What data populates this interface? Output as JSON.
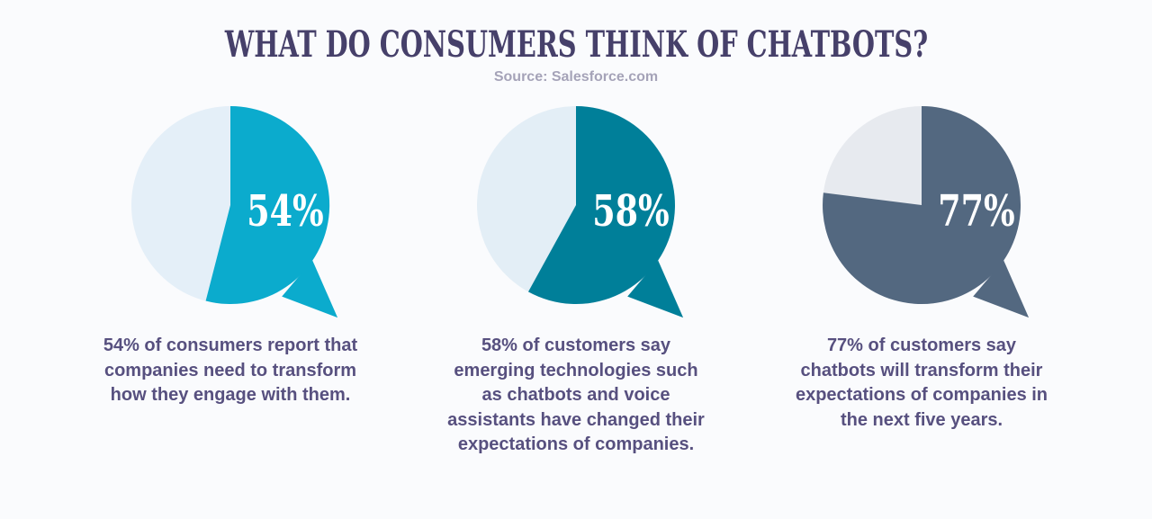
{
  "header": {
    "title": "WHAT DO CONSUMERS THINK OF CHATBOTS?",
    "source": "Source: Salesforce.com"
  },
  "style": {
    "background": "#fafbfd",
    "title_color": "#46406a",
    "source_color": "#a5a3b8",
    "caption_color": "#57507f",
    "percent_text_color": "#ffffff"
  },
  "chart_data": {
    "type": "pie",
    "title": "WHAT DO CONSUMERS THINK OF CHATBOTS?",
    "source": "Source: Salesforce.com",
    "note": "Three speech-bubble pie charts; each filled slice starts at 12 o'clock and sweeps clockwise by the stated percentage.",
    "charts": [
      {
        "label": "54%",
        "value": 54,
        "remainder": 46,
        "slice_color": "#0babcd",
        "remainder_color": "#e4eff8",
        "caption_lines": [
          "54% of consumers report that",
          "companies need to transform",
          "how they engage with them."
        ]
      },
      {
        "label": "58%",
        "value": 58,
        "remainder": 42,
        "slice_color": "#007f99",
        "remainder_color": "#e3eef6",
        "caption_lines": [
          "58% of customers say",
          "emerging technologies such",
          "as chatbots and voice",
          "assistants have changed their",
          "expectations of companies."
        ]
      },
      {
        "label": "77%",
        "value": 77,
        "remainder": 23,
        "slice_color": "#536880",
        "remainder_color": "#e7eaef",
        "caption_lines": [
          "77% of customers say",
          "chatbots will transform their",
          "expectations of companies in",
          "the next five years."
        ]
      }
    ]
  }
}
